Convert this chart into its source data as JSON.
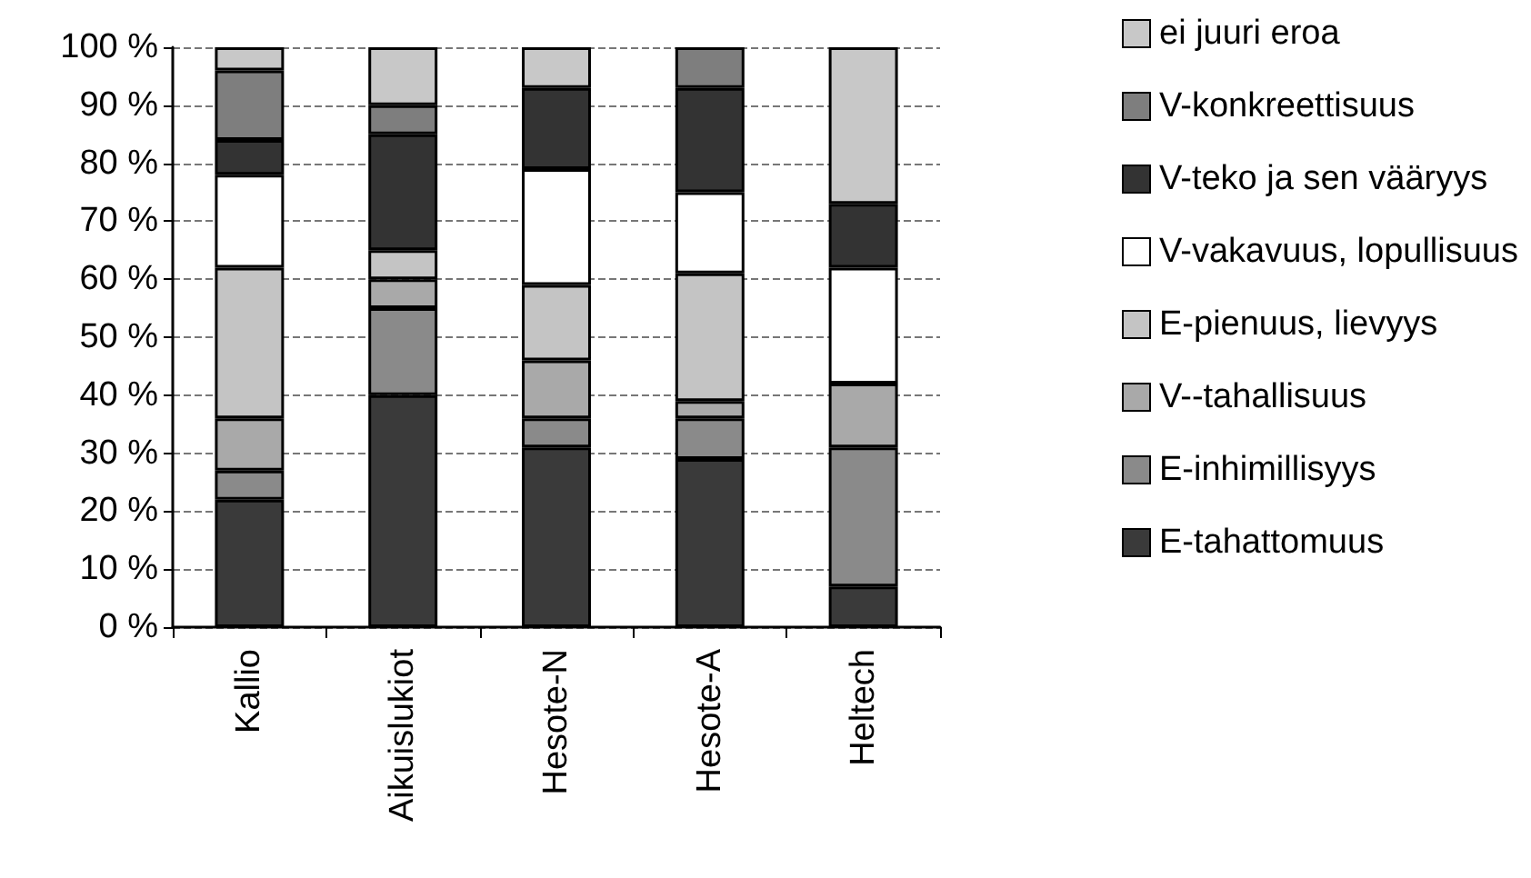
{
  "chart_data": {
    "type": "bar",
    "stacked": true,
    "categories": [
      "Kallio",
      "Aikuislukiot",
      "Hesote-N",
      "Hesote-A",
      "Heltech"
    ],
    "series": [
      {
        "name": "E-tahattomuus",
        "color": "#3a3a3a",
        "values": [
          22,
          40,
          31,
          29,
          7
        ]
      },
      {
        "name": "E-inhimillisyys",
        "color": "#8a8a8a",
        "values": [
          5,
          15,
          5,
          7,
          24
        ]
      },
      {
        "name": "V--tahallisuus",
        "color": "#a9a9a9",
        "values": [
          9,
          5,
          10,
          3,
          11
        ]
      },
      {
        "name": "E-pienuus, lievyys",
        "color": "#c4c4c4",
        "values": [
          26,
          5,
          13,
          22,
          0
        ]
      },
      {
        "name": "V-vakavuus, lopullisuus",
        "color": "#ffffff",
        "values": [
          16,
          0,
          20,
          14,
          20
        ]
      },
      {
        "name": "V-teko ja sen vääryys",
        "color": "#333333",
        "values": [
          6,
          20,
          14,
          18,
          11
        ]
      },
      {
        "name": "V-konkreettisuus",
        "color": "#7e7e7e",
        "values": [
          12,
          5,
          0,
          7,
          0
        ]
      },
      {
        "name": "ei juuri eroa",
        "color": "#c8c8c8",
        "values": [
          4,
          10,
          7,
          0,
          27
        ]
      }
    ],
    "ylim": [
      0,
      100
    ],
    "yticks": [
      {
        "value": 0,
        "label": "0 %"
      },
      {
        "value": 10,
        "label": "10 %"
      },
      {
        "value": 20,
        "label": "20 %"
      },
      {
        "value": 30,
        "label": "30 %"
      },
      {
        "value": 40,
        "label": "40 %"
      },
      {
        "value": 50,
        "label": "50 %"
      },
      {
        "value": 60,
        "label": "60 %"
      },
      {
        "value": 70,
        "label": "70 %"
      },
      {
        "value": 80,
        "label": "80 %"
      },
      {
        "value": 90,
        "label": "90 %"
      },
      {
        "value": 100,
        "label": "100 %"
      }
    ],
    "grid": "y",
    "legend": "right"
  }
}
